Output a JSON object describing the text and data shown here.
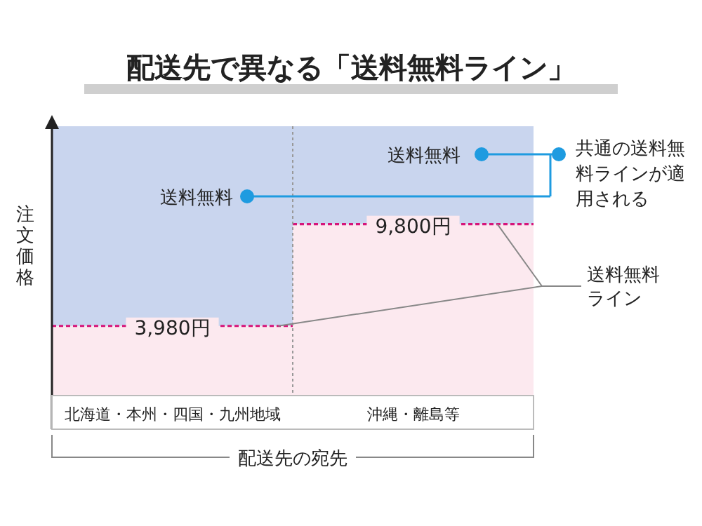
{
  "chart_data": {
    "type": "bar",
    "title": "配送先で異なる「送料無料ライン」",
    "categories": [
      "北海道・本州・四国・九州地域",
      "沖縄・離島等"
    ],
    "series": [
      {
        "color": "#fce9ef",
        "values": [
          3980,
          9800
        ],
        "value_labels": [
          "3,980円",
          "9,800円"
        ]
      }
    ],
    "ylim": [
      0,
      15400
    ],
    "tick_labels": "x",
    "xlabel": "配送先の宛先",
    "ylabel": "注文価格",
    "annotations": [
      "送料無料",
      "送料無料",
      "共通の送料無料ラインが適用される",
      "送料無料ライン"
    ]
  }
}
